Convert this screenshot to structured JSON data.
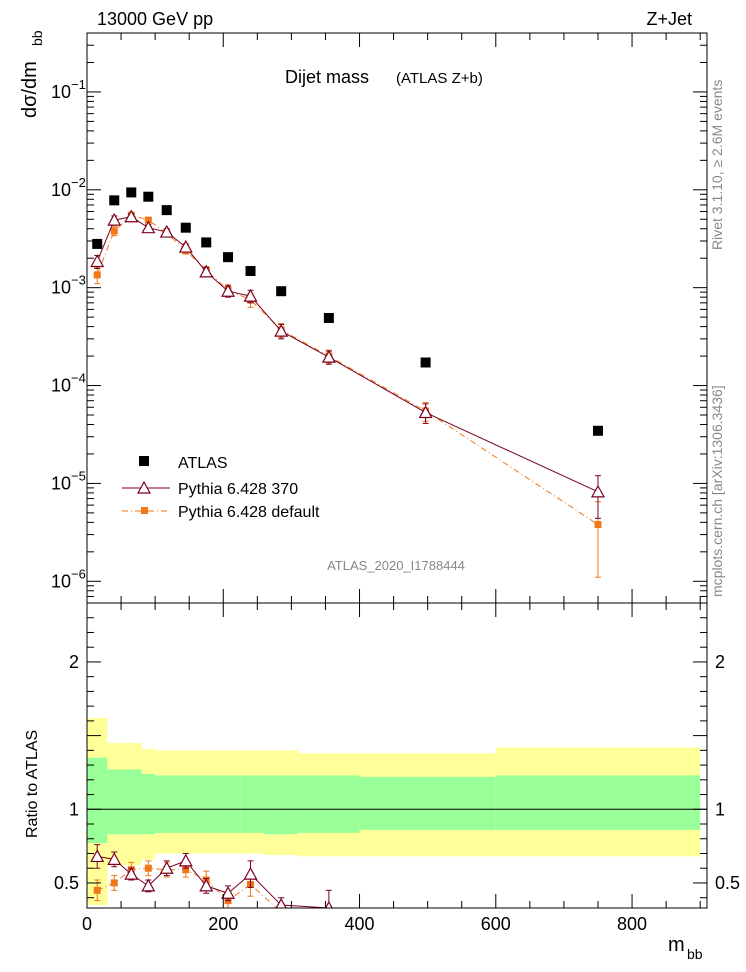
{
  "header": {
    "energy": "13000 GeV pp",
    "process": "Z+Jet"
  },
  "side_text": {
    "rivet": "Rivet 3.1.10, ≥ 2.6M events",
    "source": "mcplots.cern.ch [arXiv:1306.3436]"
  },
  "chart_data": [
    {
      "type": "scatter",
      "title": "Dijet mass",
      "subtitle": "(ATLAS Z+b)",
      "analysis_label": "ATLAS_2020_I1788444",
      "ylabel": "dσ/dm_bb",
      "ylabel_main": "dσ/dm",
      "ylabel_sub": "bb",
      "yscale": "log",
      "xlim": [
        0,
        910
      ],
      "ylim": [
        6e-07,
        0.4
      ],
      "ytick_labels": [
        {
          "base": "10",
          "exp": "−6",
          "value": 1e-06
        },
        {
          "base": "10",
          "exp": "−5",
          "value": 1e-05
        },
        {
          "base": "10",
          "exp": "−4",
          "value": 0.0001
        },
        {
          "base": "10",
          "exp": "−3",
          "value": 0.001
        },
        {
          "base": "10",
          "exp": "−2",
          "value": 0.01
        },
        {
          "base": "10",
          "exp": "−1",
          "value": 0.1
        }
      ],
      "legend_position": "bottom-left",
      "series": [
        {
          "name": "ATLAS",
          "color": "#000000",
          "marker": "square",
          "x": [
            15,
            40,
            65,
            90,
            117,
            145,
            175,
            207,
            240,
            285,
            355,
            497,
            750
          ],
          "y": [
            0.0028,
            0.0078,
            0.0094,
            0.0085,
            0.0062,
            0.0041,
            0.0029,
            0.00205,
            0.00148,
            0.00092,
            0.00049,
            0.000172,
            3.45e-05
          ],
          "err": [
            0,
            0,
            0,
            0,
            0,
            0,
            0,
            0,
            0,
            0,
            0,
            0,
            0
          ]
        },
        {
          "name": "Pythia 6.428 370",
          "color": "#7a0020",
          "marker": "open-triangle",
          "line": "solid",
          "x": [
            15,
            40,
            65,
            90,
            117,
            145,
            175,
            207,
            240,
            285,
            355,
            497,
            750
          ],
          "y": [
            0.00185,
            0.0049,
            0.0053,
            0.0041,
            0.0037,
            0.0026,
            0.00145,
            0.00092,
            0.00082,
            0.00036,
            0.000195,
            5.3e-05,
            8.2e-06
          ],
          "err": [
            0.00028,
            0.0005,
            0.0004,
            0.0003,
            0.0003,
            0.0002,
            0.00015,
            0.00012,
            0.00012,
            6e-05,
            3e-05,
            1.2e-05,
            3.8e-06
          ]
        },
        {
          "name": "Pythia 6.428 default",
          "color": "#f07818",
          "marker": "filled-square",
          "line": "dashdot",
          "x": [
            15,
            40,
            65,
            90,
            117,
            145,
            175,
            207,
            240,
            285,
            355,
            497,
            750
          ],
          "y": [
            0.00135,
            0.0038,
            0.0055,
            0.0049,
            0.0036,
            0.0024,
            0.0015,
            0.00095,
            0.00075,
            0.00037,
            0.0002,
            5.5e-05,
            3.8e-06
          ],
          "err": [
            0.00025,
            0.0004,
            0.0004,
            0.0003,
            0.0003,
            0.0002,
            0.00015,
            0.00012,
            0.00012,
            6e-05,
            3e-05,
            1.2e-05,
            2.7e-06
          ]
        }
      ]
    },
    {
      "type": "scatter",
      "ylabel": "Ratio to ATLAS",
      "xlabel": "m_bb",
      "xlabel_main": "m",
      "xlabel_sub": "bb",
      "xlim": [
        0,
        910
      ],
      "ylim": [
        0.33,
        2.4
      ],
      "xticks": [
        0,
        200,
        400,
        600,
        800
      ],
      "yticks": [
        0.5,
        1,
        2
      ],
      "ytick_labels": [
        "0.5",
        "1",
        "2"
      ],
      "bands": {
        "edges": [
          0,
          30,
          50,
          80,
          100,
          130,
          160,
          190,
          225,
          260,
          310,
          400,
          600,
          900
        ],
        "inner_low": [
          0.77,
          0.83,
          0.83,
          0.83,
          0.84,
          0.84,
          0.84,
          0.84,
          0.84,
          0.83,
          0.84,
          0.86,
          0.86
        ],
        "inner_high": [
          1.35,
          1.27,
          1.27,
          1.24,
          1.23,
          1.23,
          1.23,
          1.23,
          1.23,
          1.23,
          1.23,
          1.22,
          1.23
        ],
        "outer_low": [
          0.35,
          0.62,
          0.62,
          0.66,
          0.7,
          0.7,
          0.7,
          0.7,
          0.7,
          0.69,
          0.68,
          0.68,
          0.68
        ],
        "outer_high": [
          1.62,
          1.45,
          1.45,
          1.41,
          1.4,
          1.4,
          1.4,
          1.4,
          1.4,
          1.4,
          1.38,
          1.38,
          1.42
        ],
        "inner_color": "#99ff99",
        "outer_color": "#ffff99"
      },
      "series": [
        {
          "name": "Pythia 6.428 370",
          "color": "#7a0020",
          "marker": "open-triangle",
          "line": "solid",
          "x": [
            15,
            40,
            65,
            90,
            117,
            145,
            175,
            207,
            240,
            285,
            355
          ],
          "y": [
            0.68,
            0.66,
            0.56,
            0.48,
            0.6,
            0.65,
            0.48,
            0.43,
            0.56,
            0.35,
            0.33
          ],
          "err": [
            0.08,
            0.05,
            0.04,
            0.04,
            0.05,
            0.05,
            0.05,
            0.05,
            0.09,
            0.05,
            0.12
          ]
        },
        {
          "name": "Pythia 6.428 default",
          "color": "#f07818",
          "marker": "filled-square",
          "line": "dashdot",
          "x": [
            15,
            40,
            65,
            90,
            117,
            145,
            175,
            207,
            240,
            285
          ],
          "y": [
            0.45,
            0.5,
            0.59,
            0.6,
            0.59,
            0.59,
            0.52,
            0.38,
            0.49,
            0.3
          ],
          "err": [
            0.07,
            0.05,
            0.05,
            0.05,
            0.05,
            0.05,
            0.06,
            0.06,
            0.08,
            0.06
          ]
        }
      ]
    }
  ]
}
